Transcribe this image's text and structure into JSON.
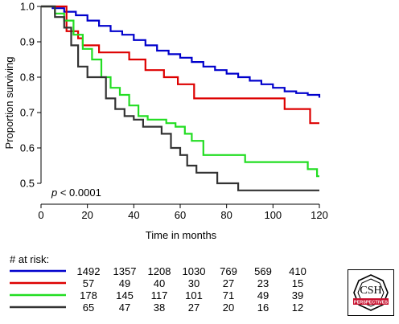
{
  "chart_data": {
    "type": "line",
    "xlabel": "Time in months",
    "ylabel": "Proportion surviving",
    "xlim": [
      0,
      120
    ],
    "ylim": [
      0.45,
      1.0
    ],
    "xticks": [
      "0",
      "20",
      "40",
      "60",
      "80",
      "100",
      "120"
    ],
    "yticks": [
      "0.5",
      "0.6",
      "0.7",
      "0.8",
      "0.9",
      "1.0"
    ],
    "grid": false,
    "annotation": {
      "p_label": "p",
      "p_value": " < 0.0001"
    },
    "series": [
      {
        "color": "#0000cc",
        "x": [
          0,
          5,
          10,
          15,
          20,
          25,
          30,
          35,
          40,
          45,
          50,
          55,
          60,
          65,
          70,
          75,
          80,
          85,
          90,
          95,
          100,
          105,
          110,
          115,
          120
        ],
        "y": [
          1.0,
          0.995,
          0.985,
          0.975,
          0.96,
          0.945,
          0.93,
          0.92,
          0.905,
          0.89,
          0.875,
          0.865,
          0.855,
          0.843,
          0.83,
          0.82,
          0.81,
          0.8,
          0.79,
          0.78,
          0.77,
          0.76,
          0.755,
          0.75,
          0.742
        ]
      },
      {
        "color": "#dd0000",
        "x": [
          0,
          8,
          11,
          16,
          18,
          22,
          25,
          35,
          38,
          45,
          53,
          59,
          62,
          66,
          70,
          105,
          116,
          120
        ],
        "y": [
          1.0,
          1.0,
          0.93,
          0.91,
          0.89,
          0.89,
          0.87,
          0.87,
          0.85,
          0.82,
          0.8,
          0.78,
          0.78,
          0.74,
          0.74,
          0.71,
          0.67,
          0.67
        ]
      },
      {
        "color": "#22dd22",
        "x": [
          0,
          6,
          10,
          14,
          18,
          22,
          26,
          30,
          34,
          38,
          42,
          46,
          50,
          54,
          58,
          62,
          65,
          70,
          80,
          88,
          110,
          115,
          119,
          120
        ],
        "y": [
          1.0,
          0.98,
          0.96,
          0.92,
          0.88,
          0.85,
          0.8,
          0.77,
          0.75,
          0.72,
          0.69,
          0.68,
          0.68,
          0.67,
          0.66,
          0.64,
          0.62,
          0.58,
          0.58,
          0.56,
          0.56,
          0.54,
          0.52,
          0.52
        ]
      },
      {
        "color": "#333333",
        "x": [
          0,
          6,
          10,
          13,
          16,
          20,
          25,
          28,
          32,
          36,
          40,
          44,
          48,
          52,
          56,
          60,
          63,
          67,
          72,
          76,
          80,
          85,
          90,
          100,
          120
        ],
        "y": [
          1.0,
          0.97,
          0.94,
          0.89,
          0.83,
          0.8,
          0.8,
          0.74,
          0.71,
          0.69,
          0.68,
          0.66,
          0.66,
          0.64,
          0.6,
          0.58,
          0.55,
          0.53,
          0.53,
          0.5,
          0.5,
          0.48,
          0.48,
          0.48,
          0.48
        ]
      }
    ]
  },
  "risk_table": {
    "header": "# at risk:",
    "rows": [
      {
        "color": "#0000cc",
        "counts": [
          "1492",
          "1357",
          "1208",
          "1030",
          "769",
          "569",
          "410"
        ]
      },
      {
        "color": "#dd0000",
        "counts": [
          "57",
          "49",
          "40",
          "30",
          "27",
          "23",
          "15"
        ]
      },
      {
        "color": "#22dd22",
        "counts": [
          "178",
          "145",
          "117",
          "101",
          "71",
          "49",
          "39"
        ]
      },
      {
        "color": "#333333",
        "counts": [
          "65",
          "47",
          "38",
          "27",
          "20",
          "16",
          "12"
        ]
      }
    ]
  },
  "logo": {
    "line1": "CSH",
    "line2": "PERSPECTIVES"
  }
}
